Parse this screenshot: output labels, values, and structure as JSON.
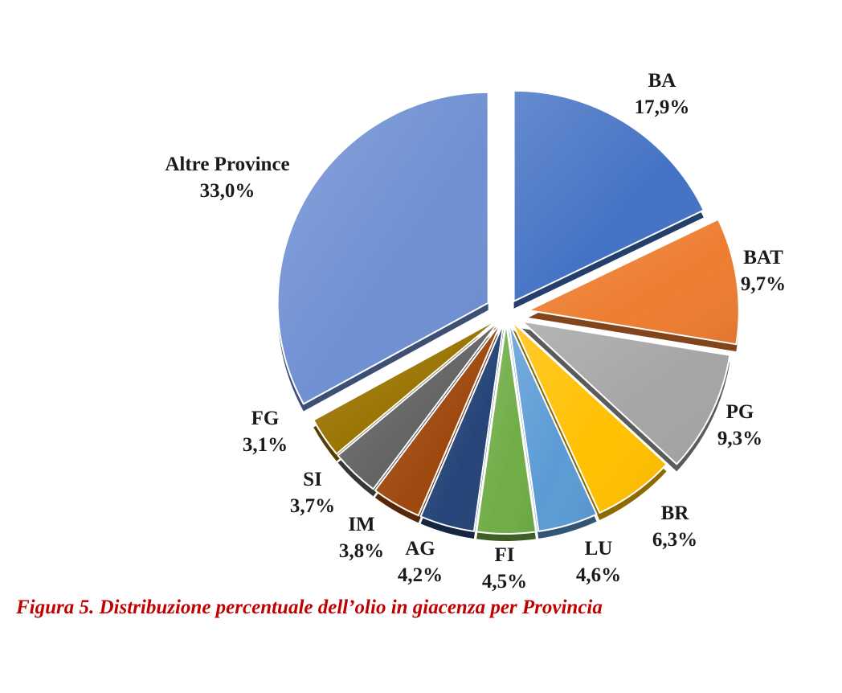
{
  "figure": {
    "caption": "Figura 5. Distribuzione percentuale dell’olio in giacenza per Provincia"
  },
  "chart_data": {
    "type": "pie",
    "exploded": true,
    "three_d": true,
    "slices": [
      {
        "name": "BA",
        "value": 17.9,
        "label": "17,9%",
        "color": "#4472c4"
      },
      {
        "name": "BAT",
        "value": 9.7,
        "label": "9,7%",
        "color": "#ed7d31"
      },
      {
        "name": "PG",
        "value": 9.3,
        "label": "9,3%",
        "color": "#a5a5a5"
      },
      {
        "name": "BR",
        "value": 6.3,
        "label": "6,3%",
        "color": "#ffc000"
      },
      {
        "name": "LU",
        "value": 4.6,
        "label": "4,6%",
        "color": "#5b9bd5"
      },
      {
        "name": "FI",
        "value": 4.5,
        "label": "4,5%",
        "color": "#70ad47"
      },
      {
        "name": "AG",
        "value": 4.2,
        "label": "4,2%",
        "color": "#264478"
      },
      {
        "name": "IM",
        "value": 3.8,
        "label": "3,8%",
        "color": "#9e480e"
      },
      {
        "name": "SI",
        "value": 3.7,
        "label": "3,7%",
        "color": "#636363"
      },
      {
        "name": "FG",
        "value": 3.1,
        "label": "3,1%",
        "color": "#997300"
      },
      {
        "name": "Altre Province",
        "value": 33.0,
        "label": "33,0%",
        "color": "#6f8fd3"
      }
    ]
  }
}
